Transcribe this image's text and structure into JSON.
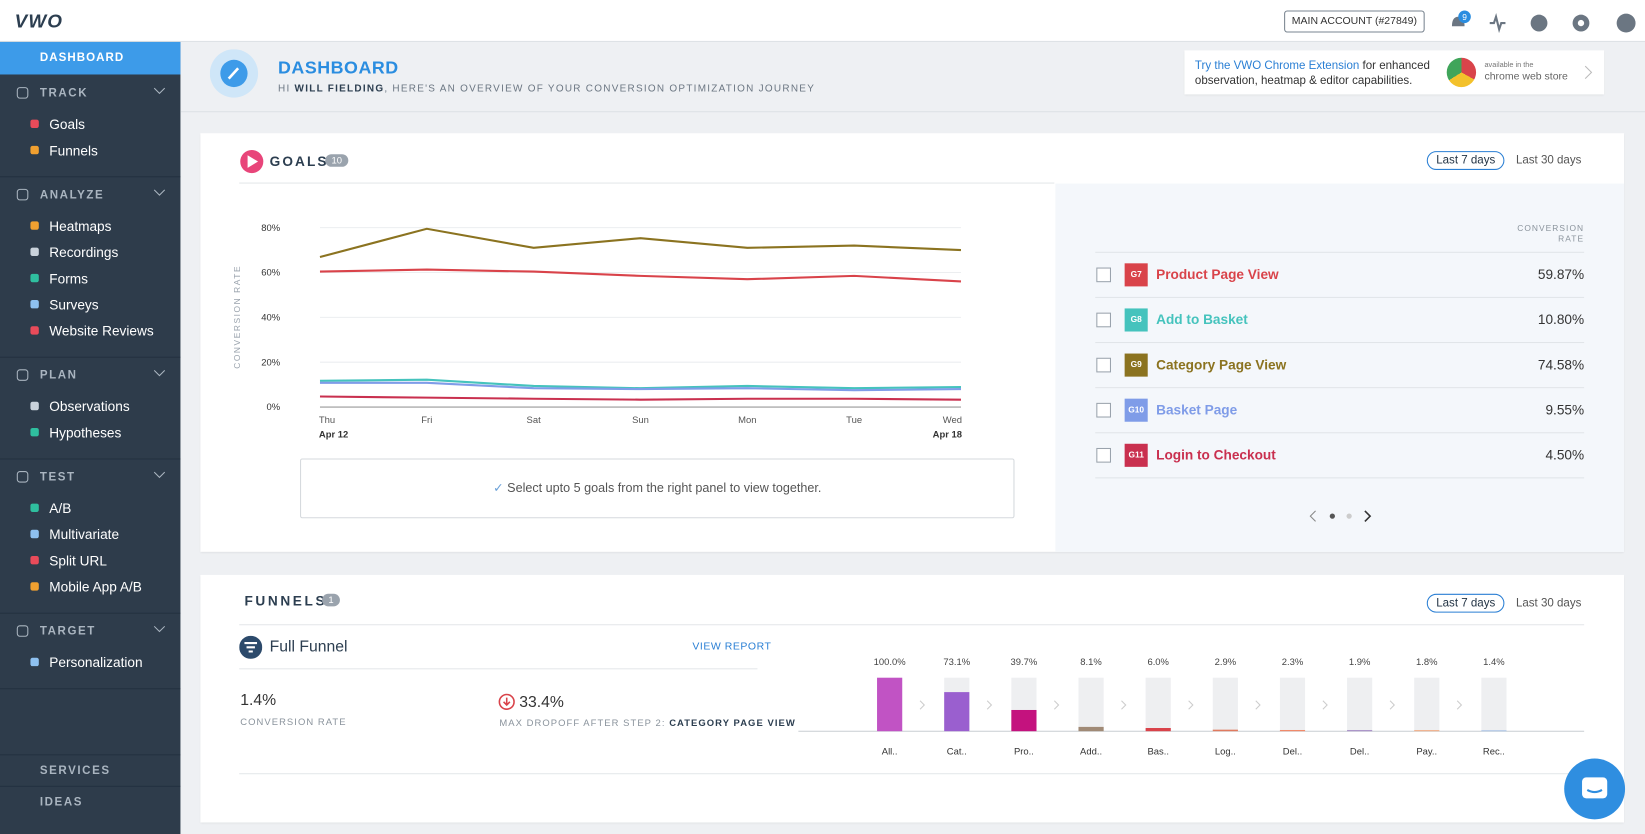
{
  "header": {
    "logo": "VWO",
    "account": "MAIN ACCOUNT (#27849)",
    "notifications": "9"
  },
  "sidebar": {
    "active": "DASHBOARD",
    "sections": [
      {
        "title": "TRACK",
        "items": [
          "Goals",
          "Funnels"
        ]
      },
      {
        "title": "ANALYZE",
        "items": [
          "Heatmaps",
          "Recordings",
          "Forms",
          "Surveys",
          "Website Reviews"
        ]
      },
      {
        "title": "PLAN",
        "items": [
          "Observations",
          "Hypotheses"
        ]
      },
      {
        "title": "TEST",
        "items": [
          "A/B",
          "Multivariate",
          "Split URL",
          "Mobile App A/B"
        ]
      },
      {
        "title": "TARGET",
        "items": [
          "Personalization"
        ]
      }
    ],
    "bottom": [
      "SERVICES",
      "IDEAS"
    ]
  },
  "page_header": {
    "title": "DASHBOARD",
    "greeting_prefix": "HI",
    "user": "WILL FIELDING",
    "greeting_suffix": ", HERE'S AN OVERVIEW OF YOUR CONVERSION OPTIMIZATION JOURNEY"
  },
  "promo": {
    "link": "Try the VWO Chrome Extension",
    "text": "for enhanced observation, heatmap & editor capabilities.",
    "badge_small": "available in the",
    "badge_big": "chrome web store"
  },
  "goals": {
    "title": "GOALS",
    "count": 10,
    "ranges": [
      "Last 7 days",
      "Last 30 days"
    ],
    "chart": {
      "type": "line",
      "y_label": "CONVERSION RATE",
      "categories": [
        "Thu",
        "Fri",
        "Sat",
        "Sun",
        "Mon",
        "Tue",
        "Wed"
      ],
      "x_sublabels": [
        "Apr 12",
        null,
        null,
        null,
        null,
        null,
        "Apr 18"
      ],
      "ylim": [
        0,
        80
      ],
      "yticks": [
        {
          "value": 0,
          "label": "0%"
        },
        {
          "value": 20,
          "label": "20%"
        },
        {
          "value": 40,
          "label": "40%"
        },
        {
          "value": 60,
          "label": "60%"
        },
        {
          "value": 80,
          "label": "80%"
        }
      ],
      "grid": true
    },
    "hint": "Select upto 5 goals from the right panel to view together.",
    "table_header": "CONVERSION RATE",
    "rows": [
      {
        "id": "G7",
        "name": "Product Page View",
        "rate": "59.87%",
        "color": "#d9434a",
        "trend": [
          60.4,
          61.3,
          60.4,
          58.5,
          57,
          58.5,
          56
        ]
      },
      {
        "id": "G8",
        "name": "Add to Basket",
        "rate": "10.80%",
        "color": "#45c3bd",
        "trend": [
          11.7,
          12.2,
          9.4,
          8.4,
          9.4,
          8.4,
          8.9
        ]
      },
      {
        "id": "G9",
        "name": "Category Page View",
        "rate": "74.58%",
        "color": "#8b7320",
        "trend": [
          66.9,
          79.5,
          71,
          75.3,
          71,
          72,
          70
        ]
      },
      {
        "id": "G10",
        "name": "Basket Page",
        "rate": "9.55%",
        "color": "#7f9ce8",
        "trend": [
          10.8,
          10.8,
          8.4,
          8,
          8.4,
          7.5,
          8
        ]
      },
      {
        "id": "G11",
        "name": "Login to Checkout",
        "rate": "4.50%",
        "color": "#c9304f",
        "trend": [
          4.7,
          4.2,
          3.7,
          3.3,
          3.7,
          3.7,
          3.3
        ]
      }
    ]
  },
  "funnels": {
    "title": "FUNNELS",
    "count": 1,
    "ranges": [
      "Last 7 days",
      "Last 30 days"
    ],
    "name": "Full Funnel",
    "view_report": "VIEW REPORT",
    "conversion": "1.4%",
    "conversion_label": "CONVERSION RATE",
    "dropoff": "33.4%",
    "dropoff_label": "MAX DROPOFF AFTER STEP 2:",
    "dropoff_step": "CATEGORY PAGE VIEW",
    "chart": {
      "type": "bar",
      "ylim": [
        0,
        100
      ],
      "categories": [
        "All..",
        "Cat..",
        "Pro..",
        "Add..",
        "Bas..",
        "Log..",
        "Del..",
        "Del..",
        "Pay..",
        "Rec.."
      ],
      "values": [
        100,
        73.1,
        39.7,
        8.1,
        6.0,
        2.9,
        2.3,
        1.9,
        1.8,
        1.4
      ],
      "value_labels": [
        "100.0%",
        "73.1%",
        "39.7%",
        "8.1%",
        "6.0%",
        "2.9%",
        "2.3%",
        "1.9%",
        "1.8%",
        "1.4%"
      ],
      "colors": [
        "#c153c4",
        "#9a5fcf",
        "#c4127e",
        "#a08a76",
        "#d9434a",
        "#e07a5f",
        "#f08a6a",
        "#9b7fbf",
        "#f0a070",
        "#8fb0e0"
      ]
    }
  }
}
